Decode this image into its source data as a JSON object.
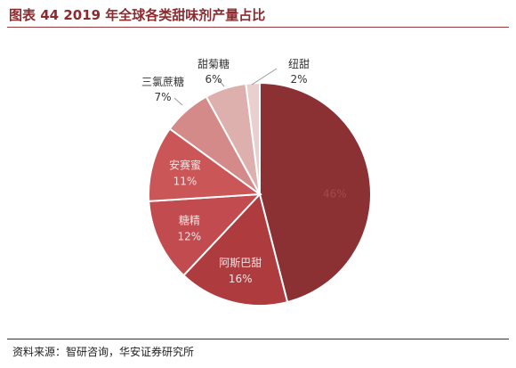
{
  "header": {
    "title": "图表 44 2019 年全球各类甜味剂产量占比"
  },
  "footer": {
    "source": "资料来源：智研咨询，华安证券研究所"
  },
  "chart_data": {
    "type": "pie",
    "title": "图表 44 2019 年全球各类甜味剂产量占比",
    "slices": [
      {
        "name": "三氯蔗糖_hidden",
        "label": "",
        "value": 46,
        "percent": "46%",
        "color": "#8b3033",
        "label_inside": true,
        "hidden_label": true
      },
      {
        "name": "阿斯巴甜",
        "label": "阿斯巴甜",
        "value": 16,
        "percent": "16%",
        "color": "#ae3c3f",
        "label_inside": true
      },
      {
        "name": "糖精",
        "label": "糖精",
        "value": 12,
        "percent": "12%",
        "color": "#c14b4e",
        "label_inside": true
      },
      {
        "name": "安赛蜜",
        "label": "安赛蜜",
        "value": 11,
        "percent": "11%",
        "color": "#cb5658",
        "label_inside": true
      },
      {
        "name": "三氯蔗糖",
        "label": "三氯蔗糖",
        "value": 7,
        "percent": "7%",
        "color": "#d48a88",
        "label_inside": false
      },
      {
        "name": "甜菊糖",
        "label": "甜菊糖",
        "value": 6,
        "percent": "6%",
        "color": "#ddb0ae",
        "label_inside": false
      },
      {
        "name": "纽甜",
        "label": "纽甜",
        "value": 2,
        "percent": "2%",
        "color": "#e9cfcd",
        "label_inside": false
      }
    ]
  }
}
